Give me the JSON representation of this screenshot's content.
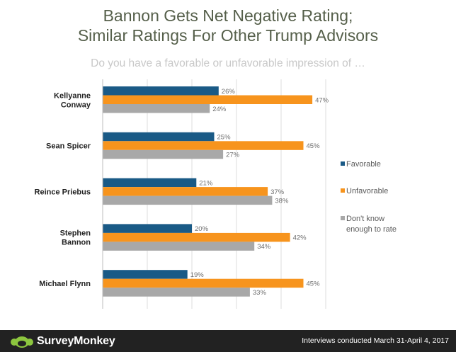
{
  "header": {
    "title_line1": "Bannon Gets Net Negative Rating;",
    "title_line2": "Similar Ratings For Other Trump Advisors",
    "subtitle": "Do you have a favorable or unfavorable impression of …"
  },
  "footer": {
    "brand": "SurveyMonkey",
    "note": "Interviews conducted March 31-April 4, 2017"
  },
  "colors": {
    "favorable": "#1a5a86",
    "unfavorable": "#f7941d",
    "dont_know": "#a8a8a8"
  },
  "chart_data": {
    "type": "bar",
    "orientation": "horizontal",
    "categories": [
      [
        "Kellyanne",
        "Conway"
      ],
      [
        "Sean Spicer"
      ],
      [
        "Reince Priebus"
      ],
      [
        "Stephen",
        "Bannon"
      ],
      [
        "Michael Flynn"
      ]
    ],
    "series": [
      {
        "name": "Favorable",
        "values": [
          26,
          25,
          21,
          20,
          19
        ],
        "labels": [
          "26%",
          "25%",
          "21%",
          "20%",
          "19%"
        ]
      },
      {
        "name": "Unfavorable",
        "values": [
          47,
          45,
          37,
          42,
          45
        ],
        "labels": [
          "47%",
          "45%",
          "37%",
          "42%",
          "45%"
        ]
      },
      {
        "name": "Don't know enough to rate",
        "legend_lines": [
          "Don't know",
          "enough to rate"
        ],
        "values": [
          24,
          27,
          38,
          34,
          33
        ],
        "labels": [
          "24%",
          "27%",
          "38%",
          "34%",
          "33%"
        ]
      }
    ],
    "xlim": [
      0,
      50
    ],
    "grid": true,
    "legend_position": "right"
  }
}
